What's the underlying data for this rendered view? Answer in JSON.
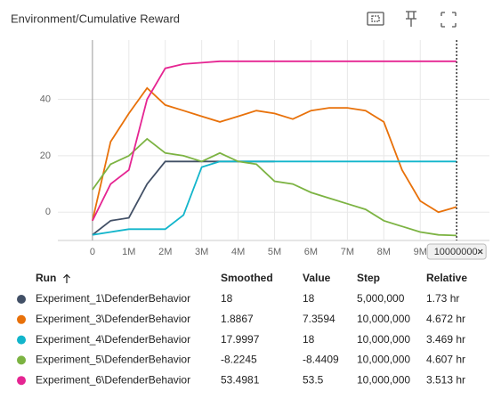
{
  "chart_data": {
    "type": "line",
    "title": "Environment/Cumulative Reward",
    "x": [
      0,
      500000,
      1000000,
      1500000,
      2000000,
      2500000,
      3000000,
      3500000,
      4000000,
      4500000,
      5000000,
      5500000,
      6000000,
      6500000,
      7000000,
      7500000,
      8000000,
      8500000,
      9000000,
      9500000,
      10000000
    ],
    "series": [
      {
        "name": "Experiment_1\\DefenderBehavior",
        "color": "#425066",
        "values": [
          -8,
          -3,
          -2,
          10,
          18,
          18,
          18,
          18,
          18,
          18,
          18,
          null,
          null,
          null,
          null,
          null,
          null,
          null,
          null,
          null,
          null
        ]
      },
      {
        "name": "Experiment_3\\DefenderBehavior",
        "color": "#e8710a",
        "values": [
          -3,
          25,
          35,
          44,
          38,
          36,
          34,
          32,
          34,
          36,
          35,
          33,
          36,
          37,
          37,
          36,
          32,
          15,
          4,
          0,
          1.8867
        ]
      },
      {
        "name": "Experiment_4\\DefenderBehavior",
        "color": "#12b5cb",
        "values": [
          -8,
          -7,
          -6,
          -6,
          -6,
          -1,
          16,
          18,
          18,
          18,
          18,
          18,
          18,
          18,
          18,
          18,
          18,
          18,
          18,
          18,
          17.9997
        ]
      },
      {
        "name": "Experiment_5\\DefenderBehavior",
        "color": "#7cb342",
        "values": [
          8,
          17,
          20,
          26,
          21,
          20,
          18,
          21,
          18,
          17,
          11,
          10,
          7,
          5,
          3,
          1,
          -3,
          -5,
          -7,
          -8,
          -8.2245
        ]
      },
      {
        "name": "Experiment_6\\DefenderBehavior",
        "color": "#e52592",
        "values": [
          -3,
          10,
          15,
          40,
          51,
          52.5,
          53,
          53.5,
          53.5,
          53.5,
          53.5,
          53.5,
          53.5,
          53.5,
          53.5,
          53.5,
          53.5,
          53.5,
          53.5,
          53.5,
          53.4981
        ]
      }
    ],
    "xlim": [
      -950000,
      10900000
    ],
    "xticks": [
      0,
      {
        "value": 1000000,
        "label": "1M"
      },
      {
        "value": 2000000,
        "label": "2M"
      },
      {
        "value": 3000000,
        "label": "3M"
      },
      {
        "value": 4000000,
        "label": "4M"
      },
      {
        "value": 5000000,
        "label": "5M"
      },
      {
        "value": 6000000,
        "label": "6M"
      },
      {
        "value": 7000000,
        "label": "7M"
      },
      {
        "value": 8000000,
        "label": "8M"
      },
      {
        "value": 9000000,
        "label": "9M"
      }
    ],
    "ylim": [
      -10,
      61
    ],
    "yticks": [
      0,
      20,
      40
    ],
    "grid": true,
    "cursor_x": 10000000
  },
  "table": {
    "columns": [
      "Run",
      "Smoothed",
      "Value",
      "Step",
      "Relative"
    ],
    "rows": [
      [
        "Experiment_1\\DefenderBehavior",
        "18",
        "18",
        "5,000,000",
        "1.73 hr"
      ],
      [
        "Experiment_3\\DefenderBehavior",
        "1.8867",
        "7.3594",
        "10,000,000",
        "4.672 hr"
      ],
      [
        "Experiment_4\\DefenderBehavior",
        "17.9997",
        "18",
        "10,000,000",
        "3.469 hr"
      ],
      [
        "Experiment_5\\DefenderBehavior",
        "-8.2245",
        "-8.4409",
        "10,000,000",
        "4.607 hr"
      ],
      [
        "Experiment_6\\DefenderBehavior",
        "53.4981",
        "53.5",
        "10,000,000",
        "3.513 hr"
      ]
    ]
  }
}
